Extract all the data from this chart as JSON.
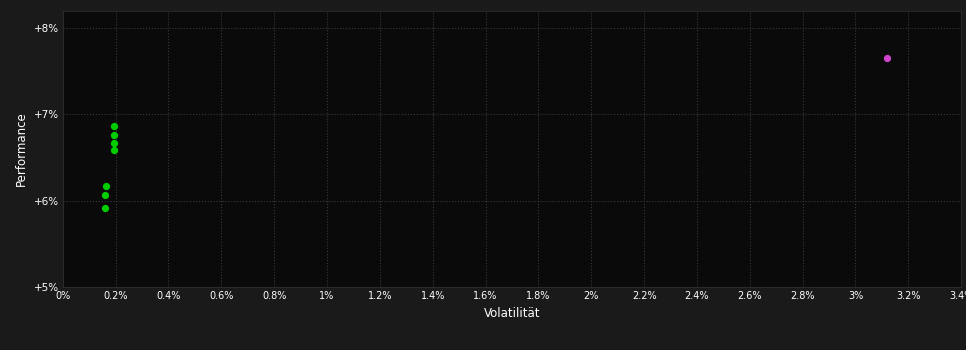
{
  "background_color": "#1a1a1a",
  "plot_bg_color": "#0a0a0a",
  "grid_color": "#3a3a3a",
  "text_color": "#ffffff",
  "xlabel": "Volatilität",
  "ylabel": "Performance",
  "xlim": [
    0,
    0.034
  ],
  "ylim": [
    0.05,
    0.082
  ],
  "yticks": [
    0.05,
    0.06,
    0.07,
    0.08
  ],
  "ytick_labels": [
    "+5%",
    "+6%",
    "+7%",
    "+8%"
  ],
  "xticks": [
    0.0,
    0.002,
    0.004,
    0.006,
    0.008,
    0.01,
    0.012,
    0.014,
    0.016,
    0.018,
    0.02,
    0.022,
    0.024,
    0.026,
    0.028,
    0.03,
    0.032,
    0.034
  ],
  "xtick_labels": [
    "0%",
    "0.2%",
    "0.4%",
    "0.6%",
    "0.8%",
    "1%",
    "1.2%",
    "1.4%",
    "1.6%",
    "1.8%",
    "2%",
    "2.2%",
    "2.4%",
    "2.6%",
    "2.8%",
    "3%",
    "3.2%",
    "3.4%"
  ],
  "green_points": [
    [
      0.00195,
      0.0686
    ],
    [
      0.00195,
      0.0676
    ],
    [
      0.00195,
      0.0667
    ],
    [
      0.00195,
      0.0658
    ],
    [
      0.00165,
      0.0617
    ],
    [
      0.0016,
      0.0607
    ],
    [
      0.0016,
      0.0592
    ]
  ],
  "magenta_points": [
    [
      0.0312,
      0.0765
    ]
  ],
  "green_color": "#00cc00",
  "magenta_color": "#cc44cc",
  "point_size": 18
}
